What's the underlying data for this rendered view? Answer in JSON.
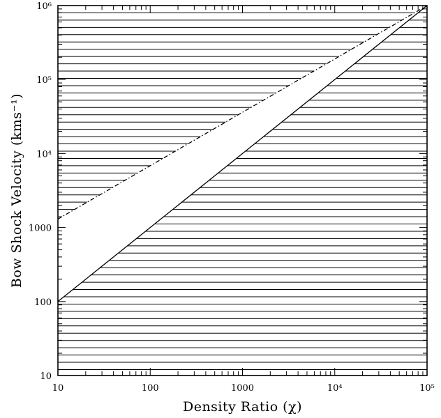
{
  "chart_data": {
    "type": "line",
    "xlabel": "Density Ratio (χ)",
    "ylabel": "Bow Shock Velocity (kms⁻¹)",
    "xscale": "log",
    "yscale": "log",
    "xlim": [
      10,
      100000
    ],
    "ylim": [
      10,
      1000000
    ],
    "x_ticks": [
      {
        "value": 10,
        "label": "10"
      },
      {
        "value": 100,
        "label": "100"
      },
      {
        "value": 1000,
        "label": "1000"
      },
      {
        "value": 10000,
        "label": "10⁴"
      },
      {
        "value": 100000,
        "label": "10⁵"
      }
    ],
    "y_ticks": [
      {
        "value": 10,
        "label": "10"
      },
      {
        "value": 100,
        "label": "100"
      },
      {
        "value": 1000,
        "label": "1000"
      },
      {
        "value": 10000,
        "label": "10⁴"
      },
      {
        "value": 100000,
        "label": "10⁵"
      },
      {
        "value": 1000000,
        "label": "10⁶"
      }
    ],
    "series": [
      {
        "style": "solid",
        "x": [
          10,
          100000
        ],
        "y": [
          100,
          1000000
        ]
      },
      {
        "style": "dashed",
        "x": [
          10,
          100000
        ],
        "y": [
          1300,
          1000000
        ]
      }
    ],
    "hatching": {
      "pattern": "horizontal lines",
      "regions": [
        "below solid line",
        "above dashed line"
      ],
      "color": "#000000"
    },
    "grid": false
  }
}
